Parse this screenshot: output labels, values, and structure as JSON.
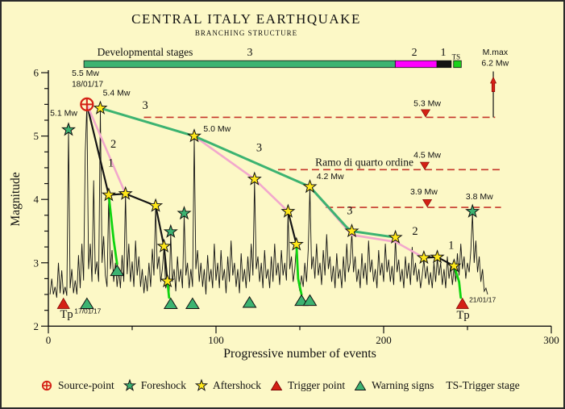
{
  "title": "CENTRAL ITALY EARTHQUAKE",
  "subtitle": "BRANCHING STRUCTURE",
  "colors": {
    "background": "#FCF8C6",
    "trace": "#141414",
    "stage3_green": "#3CB371",
    "stage2_pink": "#F2A8CC",
    "stage1_black": "#141414",
    "ts_green": "#1BD11B",
    "warning_drop_green": "#0FD40F",
    "magenta": "#FF00FF",
    "red": "#D42015",
    "dashed_red": "#C5362A",
    "star_yellow": "#FFE818",
    "star_green": "#3CB371",
    "text": "#111111"
  },
  "axes": {
    "x": {
      "label": "Progressive number of events",
      "min": 0,
      "max": 300,
      "major_ticks": [
        0,
        100,
        200,
        300
      ],
      "minor_step": 50
    },
    "y": {
      "label": "Magnitude",
      "min": 2,
      "max": 6,
      "major_ticks": [
        2,
        3,
        4,
        5,
        6
      ],
      "minor_step": 0.25
    }
  },
  "legend": {
    "items": [
      {
        "marker": "source-point",
        "label": "Source-point"
      },
      {
        "marker": "foreshock-star",
        "label": "Foreshock"
      },
      {
        "marker": "aftershock-star",
        "label": "Aftershock"
      },
      {
        "marker": "trigger-triangle",
        "label": "Trigger point"
      },
      {
        "marker": "warning-triangle",
        "label": "Warning signs"
      },
      {
        "marker": "none",
        "label": "TS-Trigger stage"
      }
    ]
  },
  "chart_data": {
    "type": "line",
    "title": "CENTRAL ITALY EARTHQUAKE",
    "subtitle": "BRANCHING STRUCTURE",
    "xlabel": "Progressive number of events",
    "ylabel": "Magnitude",
    "xlim": [
      0,
      300
    ],
    "ylim": [
      2,
      6
    ],
    "grid": false,
    "stage_bar": {
      "label": "Developmental stages",
      "segments": [
        {
          "stage": "3",
          "x1": 21.2,
          "x2": 206.9,
          "color_key": "stage3_green"
        },
        {
          "stage": "2",
          "x1": 206.9,
          "x2": 231.8,
          "color_key": "magenta"
        },
        {
          "stage": "1",
          "x1": 231.8,
          "x2": 240.3,
          "color_key": "stage1_black"
        },
        {
          "stage": "TS",
          "x1": 241.7,
          "x2": 246.3,
          "color_key": "ts_green"
        }
      ],
      "labels": [
        {
          "text": "Developmental stages",
          "x": 57.7,
          "m": 6.27,
          "size": 13.5
        },
        {
          "text": "3",
          "x": 120.2,
          "m": 6.27,
          "size": 14
        },
        {
          "text": "2",
          "x": 218.3,
          "m": 6.27,
          "size": 14
        },
        {
          "text": "1",
          "x": 235.6,
          "m": 6.27,
          "size": 14
        },
        {
          "text": "TS",
          "x": 243.2,
          "m": 6.21,
          "size": 9
        }
      ]
    },
    "mmax": {
      "label1": "M.max",
      "label2": "6.2 Mw",
      "x": 265.4,
      "line_from_m": 5.295,
      "line_to_m": 6.02,
      "arrow_tip_m": 5.93,
      "arrow_base_m": 5.7,
      "label1_pos": [
        266.5,
        6.28
      ],
      "label2_pos": [
        266.5,
        6.11
      ]
    },
    "thresholds": [
      {
        "label": "5.3 Mw",
        "m": 5.295,
        "x1": 57,
        "x2": 266.5,
        "tri": [
          225,
          5.36
        ],
        "label_pos": [
          226,
          5.47
        ]
      },
      {
        "label": "4.5 Mw",
        "m": 4.47,
        "x1": 137,
        "x2": 270,
        "tri": [
          224.5,
          4.53
        ],
        "label_pos": [
          226,
          4.66
        ]
      },
      {
        "label": "3.9 Mw",
        "m": 3.875,
        "x1": 165.5,
        "x2": 270,
        "tri": [
          226,
          3.94
        ],
        "label_pos": [
          224,
          4.08
        ]
      }
    ],
    "source_point": {
      "x": 23,
      "m": 5.5,
      "label": "5.5 Mw",
      "date": "18/01/17"
    },
    "aftershocks": [
      [
        31,
        5.44
      ],
      [
        36,
        4.07
      ],
      [
        46,
        4.09
      ],
      [
        64,
        3.9
      ],
      [
        69,
        3.26
      ],
      [
        71,
        2.71
      ],
      [
        87,
        5.0
      ],
      [
        123,
        4.32
      ],
      [
        143,
        3.81
      ],
      [
        148,
        3.29
      ],
      [
        156,
        4.2
      ],
      [
        181,
        3.5
      ],
      [
        207,
        3.4
      ],
      [
        224,
        3.08
      ],
      [
        232,
        3.09
      ],
      [
        242,
        2.95
      ]
    ],
    "foreshocks": [
      [
        12,
        5.1
      ],
      [
        73,
        3.49
      ],
      [
        81,
        3.78
      ],
      [
        253,
        3.81
      ]
    ],
    "trigger_points": [
      [
        9,
        2.36
      ],
      [
        247,
        2.36
      ]
    ],
    "warning_signs": [
      [
        23,
        2.36
      ],
      [
        41,
        2.88
      ],
      [
        73,
        2.36
      ],
      [
        86,
        2.36
      ],
      [
        120,
        2.38
      ],
      [
        151,
        2.41
      ],
      [
        156,
        2.41
      ]
    ],
    "branches": [
      {
        "stage": "1",
        "color_key": "stage1_black",
        "w": 2.2,
        "pts": [
          [
            23,
            5.5
          ],
          [
            36,
            4.07
          ],
          [
            46,
            4.09
          ],
          [
            64,
            3.9
          ],
          [
            69,
            3.26
          ],
          [
            71,
            2.71
          ]
        ]
      },
      {
        "stage": "1",
        "color_key": "stage1_black",
        "w": 2.2,
        "pts": [
          [
            143,
            3.81
          ],
          [
            148,
            3.29
          ]
        ]
      },
      {
        "stage": "1",
        "color_key": "stage1_black",
        "w": 2.2,
        "pts": [
          [
            224,
            3.08
          ],
          [
            232,
            3.09
          ],
          [
            242,
            2.95
          ]
        ]
      },
      {
        "stage": "2",
        "color_key": "stage2_pink",
        "w": 2.6,
        "pts": [
          [
            23,
            5.5
          ],
          [
            46,
            4.09
          ]
        ]
      },
      {
        "stage": "2",
        "color_key": "stage2_pink",
        "w": 2.6,
        "pts": [
          [
            87,
            5.0
          ],
          [
            123,
            4.32
          ],
          [
            143,
            3.81
          ]
        ]
      },
      {
        "stage": "2",
        "color_key": "stage2_pink",
        "w": 2.6,
        "pts": [
          [
            156,
            4.2
          ],
          [
            181,
            3.44
          ],
          [
            207,
            3.33
          ],
          [
            224,
            3.08
          ]
        ]
      },
      {
        "stage": "3",
        "color_key": "stage3_green",
        "w": 3,
        "pts": [
          [
            31,
            5.44
          ],
          [
            87,
            5.0
          ],
          [
            156,
            4.2
          ],
          [
            178,
            3.56
          ],
          [
            181,
            3.5
          ],
          [
            207,
            3.4
          ]
        ]
      },
      {
        "stage": "TS",
        "color_key": "warning_drop_green",
        "w": 2.8,
        "pts": [
          [
            36,
            4.07
          ],
          [
            39,
            3.35
          ],
          [
            41,
            2.98
          ]
        ]
      },
      {
        "stage": "TS",
        "color_key": "warning_drop_green",
        "w": 2.8,
        "pts": [
          [
            71,
            2.71
          ],
          [
            72,
            2.45
          ]
        ]
      },
      {
        "stage": "TS",
        "color_key": "warning_drop_green",
        "w": 2.8,
        "pts": [
          [
            148,
            3.29
          ],
          [
            149,
            2.75
          ],
          [
            151,
            2.5
          ]
        ]
      },
      {
        "stage": "TS",
        "color_key": "warning_drop_green",
        "w": 2.8,
        "pts": [
          [
            242,
            2.95
          ],
          [
            245,
            2.7
          ],
          [
            246,
            2.45
          ]
        ]
      }
    ],
    "annotations": [
      {
        "text": "5.5 Mw",
        "x": 14,
        "m": 5.95,
        "font": "sans",
        "size": 10.5
      },
      {
        "text": "18/01/17",
        "x": 14,
        "m": 5.78,
        "font": "sans",
        "size": 10
      },
      {
        "text": "5.4 Mw",
        "x": 32.5,
        "m": 5.64,
        "font": "sans",
        "size": 10.5
      },
      {
        "text": "5.1 Mw",
        "x": 1,
        "m": 5.32,
        "font": "sans",
        "size": 10.5
      },
      {
        "text": "5.0 Mw",
        "x": 92.5,
        "m": 5.07,
        "font": "sans",
        "size": 10.5
      },
      {
        "text": "4.2 Mw",
        "x": 160,
        "m": 4.32,
        "font": "sans",
        "size": 10.5
      },
      {
        "text": "3.8 Mw",
        "x": 249,
        "m": 4.0,
        "font": "sans",
        "size": 10.5
      },
      {
        "text": "Ramo di quarto ordine",
        "x": 188.5,
        "m": 4.53,
        "font": "serif",
        "size": 13.5,
        "anchor": "middle"
      },
      {
        "text": "3",
        "x": 56,
        "m": 5.43,
        "font": "serif",
        "size": 14.5
      },
      {
        "text": "2",
        "x": 37,
        "m": 4.82,
        "font": "serif",
        "size": 14.5
      },
      {
        "text": "1",
        "x": 35.5,
        "m": 4.52,
        "font": "serif",
        "size": 14.5
      },
      {
        "text": "3",
        "x": 124,
        "m": 4.76,
        "font": "serif",
        "size": 14.5
      },
      {
        "text": "3",
        "x": 178,
        "m": 3.77,
        "font": "serif",
        "size": 14.5
      },
      {
        "text": "2",
        "x": 217,
        "m": 3.44,
        "font": "serif",
        "size": 14.5
      },
      {
        "text": "1",
        "x": 238.5,
        "m": 3.22,
        "font": "serif",
        "size": 14.5
      },
      {
        "text": "Tp",
        "x": 7,
        "m": 2.13,
        "font": "serif",
        "size": 14.5
      },
      {
        "text": "17/01/17",
        "x": 15.5,
        "m": 2.2,
        "font": "sans",
        "size": 8.5
      },
      {
        "text": "Tp",
        "x": 243.5,
        "m": 2.12,
        "font": "serif",
        "size": 14.5
      },
      {
        "text": "21/01/17",
        "x": 251,
        "m": 2.38,
        "font": "sans",
        "size": 8.5
      }
    ],
    "trace": {
      "start_x": 1,
      "magnitudes": [
        2.5,
        2.75,
        2.5,
        2.62,
        2.45,
        3.0,
        2.52,
        2.88,
        2.5,
        2.62,
        2.48,
        5.1,
        2.6,
        2.9,
        2.52,
        2.72,
        2.5,
        3.12,
        2.6,
        3.3,
        2.72,
        4.75,
        5.5,
        2.9,
        3.3,
        2.7,
        4.3,
        2.82,
        3.02,
        2.7,
        5.4,
        3.0,
        3.42,
        2.8,
        2.62,
        4.05,
        2.9,
        3.2,
        2.7,
        3.0,
        2.62,
        2.9,
        2.6,
        3.12,
        2.7,
        4.08,
        2.82,
        3.3,
        2.7,
        3.02,
        2.62,
        3.35,
        2.8,
        3.1,
        2.62,
        2.9,
        2.52,
        2.8,
        2.55,
        3.0,
        2.62,
        3.22,
        2.8,
        3.88,
        2.9,
        3.1,
        2.7,
        2.9,
        3.24,
        2.6,
        2.7,
        2.5,
        3.45,
        2.7,
        2.9,
        2.55,
        3.1,
        2.7,
        2.9,
        2.6,
        3.75,
        2.8,
        3.0,
        2.6,
        2.9,
        2.62,
        4.98,
        2.9,
        3.2,
        2.7,
        3.0,
        2.62,
        2.9,
        2.5,
        3.12,
        2.7,
        2.9,
        2.6,
        3.3,
        2.72,
        3.0,
        2.6,
        3.2,
        2.72,
        2.9,
        2.52,
        3.1,
        2.7,
        3.35,
        2.8,
        3.0,
        2.62,
        2.9,
        2.52,
        3.15,
        2.7,
        2.9,
        2.6,
        3.1,
        2.7,
        3.3,
        2.8,
        4.3,
        2.9,
        3.1,
        2.7,
        3.0,
        2.6,
        3.2,
        2.75,
        2.9,
        2.6,
        3.1,
        2.7,
        3.3,
        2.8,
        3.0,
        2.65,
        3.2,
        2.8,
        3.0,
        2.72,
        3.78,
        2.9,
        3.1,
        2.7,
        2.9,
        3.28,
        2.7,
        2.55,
        2.8,
        2.62,
        3.0,
        2.7,
        3.2,
        4.18,
        2.9,
        3.1,
        2.75,
        3.3,
        2.8,
        3.0,
        2.65,
        3.2,
        2.8,
        3.45,
        2.9,
        3.1,
        2.7,
        2.95,
        2.6,
        3.15,
        2.75,
        2.9,
        2.6,
        3.1,
        2.7,
        3.3,
        2.85,
        3.0,
        3.48,
        2.85,
        3.1,
        2.7,
        2.9,
        2.6,
        3.15,
        2.75,
        3.0,
        2.65,
        3.35,
        2.85,
        3.05,
        2.7,
        2.9,
        2.6,
        3.2,
        2.8,
        3.0,
        2.7,
        3.3,
        2.85,
        3.05,
        2.7,
        2.95,
        2.65,
        3.38,
        2.85,
        3.05,
        2.7,
        2.9,
        2.6,
        3.1,
        2.75,
        3.0,
        2.65,
        3.25,
        2.8,
        3.0,
        2.7,
        2.9,
        2.6,
        2.8,
        3.06,
        2.75,
        2.95,
        2.65,
        2.85,
        2.6,
        3.0,
        2.7,
        3.07,
        2.8,
        3.0,
        2.65,
        2.9,
        2.6,
        3.1,
        2.75,
        2.95,
        2.65,
        2.93,
        2.7,
        3.15,
        2.8,
        3.3,
        2.9,
        3.1,
        2.75,
        3.0,
        2.85,
        3.2,
        3.78,
        3.0,
        3.35,
        2.85,
        3.1,
        2.7,
        2.9,
        2.55,
        2.6,
        2.5
      ]
    }
  }
}
